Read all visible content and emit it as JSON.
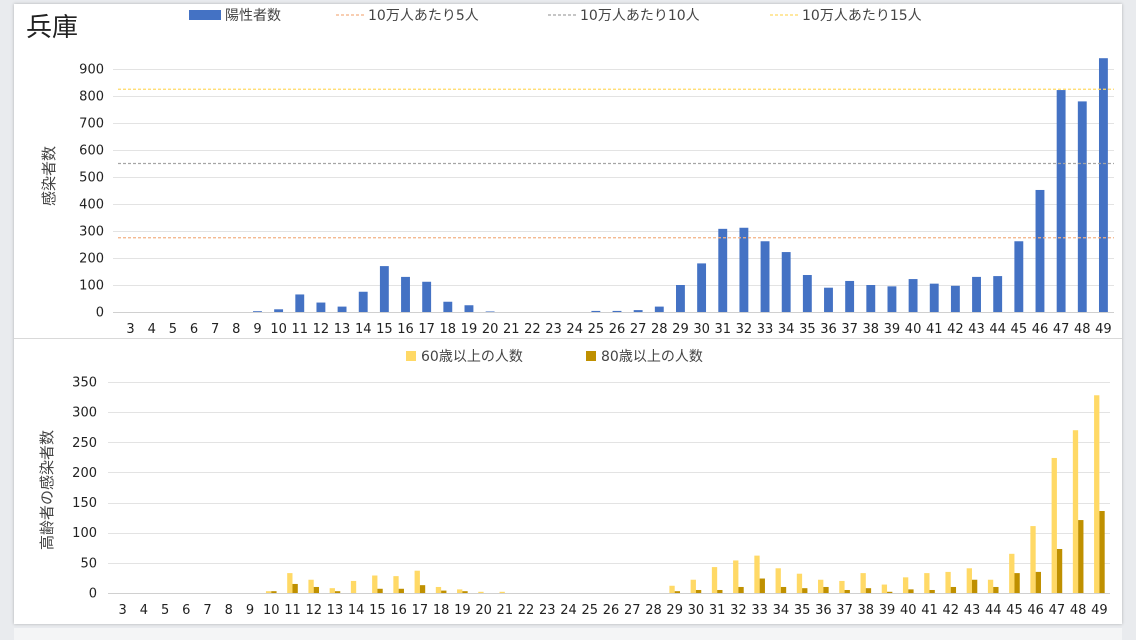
{
  "chart_data": [
    {
      "type": "bar",
      "title": "兵庫",
      "xlabel": "",
      "ylabel": "感染者数",
      "ylim": [
        0,
        900
      ],
      "yticks": [
        0,
        100,
        200,
        300,
        400,
        500,
        600,
        700,
        800,
        900
      ],
      "categories": [
        "3",
        "4",
        "5",
        "6",
        "7",
        "8",
        "9",
        "10",
        "11",
        "12",
        "13",
        "14",
        "15",
        "16",
        "17",
        "18",
        "19",
        "20",
        "21",
        "22",
        "23",
        "24",
        "25",
        "26",
        "27",
        "28",
        "29",
        "30",
        "31",
        "32",
        "33",
        "34",
        "35",
        "36",
        "37",
        "38",
        "39",
        "40",
        "41",
        "42",
        "43",
        "44",
        "45",
        "46",
        "47",
        "48",
        "49"
      ],
      "series": [
        {
          "name": "陽性者数",
          "color": "#4472c4",
          "values": [
            0,
            0,
            0,
            0,
            0,
            0,
            3,
            10,
            65,
            35,
            20,
            75,
            170,
            130,
            112,
            38,
            25,
            2,
            0,
            0,
            0,
            0,
            4,
            4,
            7,
            20,
            100,
            180,
            308,
            312,
            262,
            222,
            137,
            90,
            115,
            100,
            95,
            122,
            105,
            97,
            130,
            133,
            262,
            452,
            822,
            780,
            940
          ]
        }
      ],
      "reference_lines": [
        {
          "name": "10万人あたり5人",
          "value": 275,
          "color": "#f4b183"
        },
        {
          "name": "10万人あたり10人",
          "value": 550,
          "color": "#a5a5a5"
        },
        {
          "name": "10万人あたり15人",
          "value": 825,
          "color": "#ffd966"
        }
      ],
      "legend_position": "top",
      "grid": true
    },
    {
      "type": "bar",
      "title": "",
      "xlabel": "",
      "ylabel": "高齢者の感染者数",
      "ylim": [
        0,
        350
      ],
      "yticks": [
        0,
        50,
        100,
        150,
        200,
        250,
        300,
        350
      ],
      "categories": [
        "3",
        "4",
        "5",
        "6",
        "7",
        "8",
        "9",
        "10",
        "11",
        "12",
        "13",
        "14",
        "15",
        "16",
        "17",
        "18",
        "19",
        "20",
        "21",
        "22",
        "23",
        "24",
        "25",
        "26",
        "27",
        "28",
        "29",
        "30",
        "31",
        "32",
        "33",
        "34",
        "35",
        "36",
        "37",
        "38",
        "39",
        "40",
        "41",
        "42",
        "43",
        "44",
        "45",
        "46",
        "47",
        "48",
        "49"
      ],
      "series": [
        {
          "name": "60歳以上の人数",
          "color": "#ffd966",
          "values": [
            0,
            0,
            0,
            0,
            0,
            0,
            0,
            3,
            33,
            22,
            8,
            20,
            29,
            28,
            37,
            10,
            6,
            2,
            2,
            0,
            0,
            0,
            0,
            0,
            0,
            0,
            12,
            22,
            43,
            54,
            62,
            41,
            32,
            22,
            20,
            33,
            14,
            26,
            33,
            35,
            41,
            22,
            65,
            111,
            224,
            270,
            328
          ]
        },
        {
          "name": "80歳以上の人数",
          "color": "#bf9000",
          "values": [
            0,
            0,
            0,
            0,
            0,
            0,
            0,
            3,
            15,
            10,
            3,
            0,
            7,
            7,
            13,
            4,
            3,
            0,
            0,
            0,
            0,
            0,
            0,
            0,
            0,
            0,
            3,
            5,
            5,
            10,
            24,
            10,
            8,
            10,
            5,
            8,
            2,
            6,
            5,
            10,
            22,
            10,
            33,
            35,
            73,
            121,
            136
          ]
        }
      ],
      "legend_position": "top",
      "grid": true
    }
  ]
}
